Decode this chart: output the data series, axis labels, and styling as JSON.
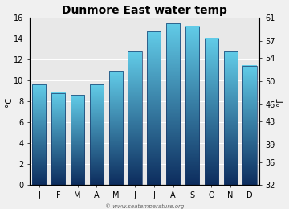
{
  "title": "Dunmore East water temp",
  "months": [
    "J",
    "F",
    "M",
    "A",
    "M",
    "J",
    "J",
    "A",
    "S",
    "O",
    "N",
    "D"
  ],
  "values_c": [
    9.6,
    8.8,
    8.6,
    9.6,
    10.9,
    12.8,
    14.7,
    15.5,
    15.2,
    14.0,
    12.8,
    11.4
  ],
  "ylabel_left": "°C",
  "ylabel_right": "°F",
  "yticks_c": [
    0,
    2,
    4,
    6,
    8,
    10,
    12,
    14,
    16
  ],
  "yticks_f": [
    32,
    36,
    39,
    43,
    46,
    50,
    54,
    57,
    61
  ],
  "ylim_c": [
    0,
    16
  ],
  "bar_color_top": "#62cce8",
  "bar_color_bottom": "#0d2d5e",
  "background_color": "#e8e8e8",
  "figure_bg": "#f0f0f0",
  "watermark": "© www.seatemperature.org",
  "title_fontsize": 10,
  "axis_fontsize": 7,
  "label_fontsize": 7.5
}
